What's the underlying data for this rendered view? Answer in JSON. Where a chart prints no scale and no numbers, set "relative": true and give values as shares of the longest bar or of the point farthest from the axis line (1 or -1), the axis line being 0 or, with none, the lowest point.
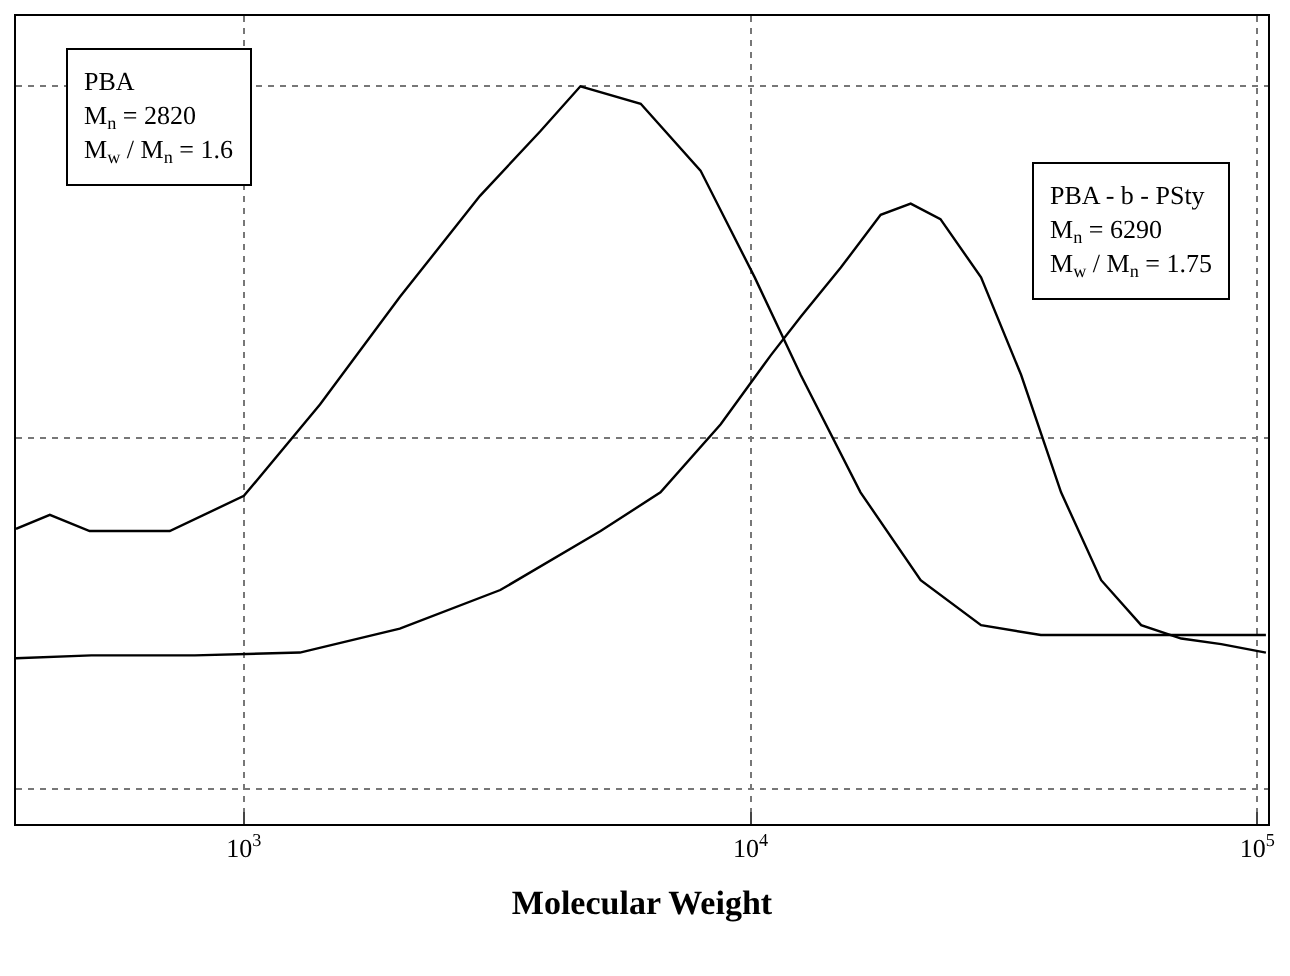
{
  "chart_data": {
    "type": "line",
    "relative": true,
    "xlabel": "Molecular Weight",
    "log": "x",
    "grid": true,
    "marker": "none",
    "line_style": "solid",
    "xlim": [
      355,
      105000
    ],
    "xticks": [
      {
        "value": 1000,
        "label": "10$^{3}$"
      },
      {
        "value": 10000,
        "label": "10$^{4}$"
      },
      {
        "value": 100000,
        "label": "10$^{5}$"
      }
    ],
    "annotations": [
      "PBA\nM$_{n}$ = 2820\nM$_{w}$ / M$_{n}$ = 1.6",
      "PBA - b - PSty\nM$_{n}$ = 6290\nM$_{w}$ / M$_{n}$ = 1.75"
    ],
    "series": [
      {
        "color": "#000000",
        "x": [
          355,
          414,
          496,
          714,
          1000,
          1413,
          2031,
          2924,
          3846,
          4615,
          6070,
          7965,
          10190,
          12560,
          16480,
          21660,
          28500,
          37400,
          53800,
          104000
        ],
        "values": [
          0.37,
          0.39,
          0.367,
          0.367,
          0.417,
          0.547,
          0.7,
          0.844,
          0.936,
          1.0,
          0.975,
          0.88,
          0.728,
          0.589,
          0.422,
          0.297,
          0.233,
          0.219,
          0.219,
          0.219
        ]
      },
      {
        "color": "#000000",
        "x": [
          355,
          500,
          800,
          1290,
          2031,
          3206,
          5058,
          6640,
          8730,
          10960,
          12560,
          15070,
          18060,
          20700,
          23700,
          28500,
          34200,
          41000,
          49200,
          59000,
          70800,
          84900,
          104000
        ],
        "values": [
          0.186,
          0.19,
          0.19,
          0.194,
          0.228,
          0.283,
          0.367,
          0.422,
          0.519,
          0.617,
          0.672,
          0.742,
          0.817,
          0.833,
          0.811,
          0.728,
          0.589,
          0.422,
          0.297,
          0.233,
          0.214,
          0.206,
          0.194
        ]
      }
    ]
  }
}
